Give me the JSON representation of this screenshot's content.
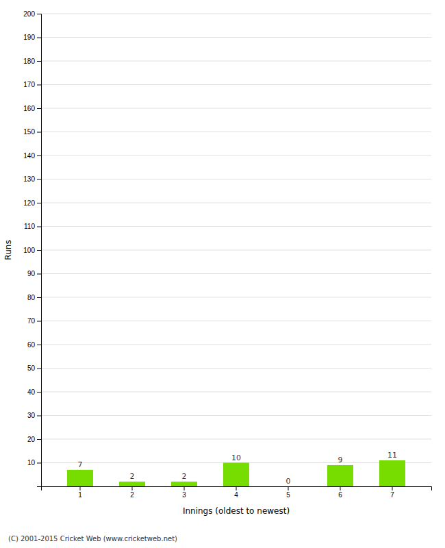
{
  "chart_data": {
    "type": "bar",
    "categories": [
      "1",
      "2",
      "3",
      "4",
      "5",
      "6",
      "7"
    ],
    "values": [
      7,
      2,
      2,
      10,
      0,
      9,
      11
    ],
    "color": "#77dd00",
    "xlabel": "Innings (oldest to newest)",
    "ylabel": "Runs",
    "ylim": [
      0,
      200
    ],
    "yticks": [
      10,
      20,
      30,
      40,
      50,
      60,
      70,
      80,
      90,
      100,
      110,
      120,
      130,
      140,
      150,
      160,
      170,
      180,
      190,
      200
    ],
    "grid": true,
    "data_labels": true,
    "footer": "(C) 2001-2015 Cricket Web (www.cricketweb.net)"
  }
}
